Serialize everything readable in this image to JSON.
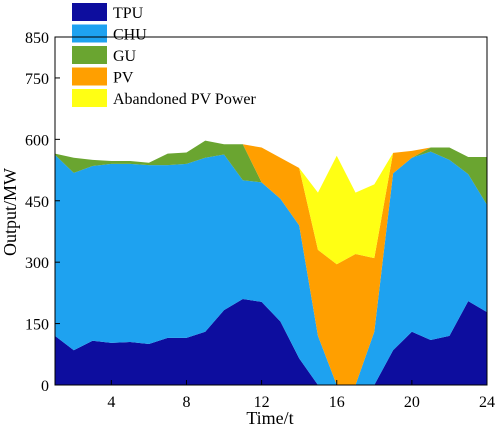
{
  "chart_data": {
    "type": "area",
    "stacked": true,
    "xlabel": "Time/t",
    "ylabel": "Output/MW",
    "xlim": [
      1,
      24
    ],
    "ylim": [
      0,
      850
    ],
    "x": [
      1,
      2,
      3,
      4,
      5,
      6,
      7,
      8,
      9,
      10,
      11,
      12,
      13,
      14,
      15,
      16,
      17,
      18,
      19,
      20,
      21,
      22,
      23,
      24
    ],
    "xticks": [
      4,
      8,
      12,
      16,
      20,
      24
    ],
    "yticks": [
      0,
      150,
      300,
      450,
      600,
      750,
      850
    ],
    "grid": false,
    "legend_position": "top-left",
    "series": [
      {
        "name": "TPU",
        "color": "#0d0d9e",
        "values": [
          120,
          85,
          108,
          103,
          105,
          100,
          115,
          115,
          130,
          183,
          210,
          203,
          155,
          65,
          0,
          0,
          0,
          0,
          85,
          130,
          110,
          120,
          205,
          178
        ]
      },
      {
        "name": "CHU",
        "color": "#1ea2f0",
        "values": [
          442,
          433,
          427,
          437,
          435,
          437,
          422,
          425,
          425,
          380,
          290,
          292,
          300,
          325,
          120,
          0,
          0,
          130,
          432,
          425,
          460,
          430,
          310,
          262
        ]
      },
      {
        "name": "GU",
        "color": "#6aa530",
        "values": [
          3,
          37,
          15,
          7,
          7,
          6,
          28,
          28,
          42,
          25,
          88,
          0,
          0,
          0,
          0,
          0,
          0,
          0,
          0,
          0,
          10,
          30,
          42,
          117
        ]
      },
      {
        "name": "PV",
        "color": "#ff9f00",
        "values": [
          0,
          0,
          0,
          0,
          0,
          0,
          0,
          0,
          0,
          0,
          0,
          85,
          100,
          140,
          210,
          295,
          320,
          180,
          50,
          17,
          0,
          0,
          0,
          0
        ]
      },
      {
        "name": "Abandoned PV Power",
        "color": "#ffff14",
        "values": [
          0,
          0,
          0,
          0,
          0,
          0,
          0,
          0,
          0,
          0,
          0,
          0,
          0,
          0,
          140,
          265,
          150,
          180,
          0,
          0,
          0,
          0,
          0,
          0
        ]
      }
    ]
  }
}
